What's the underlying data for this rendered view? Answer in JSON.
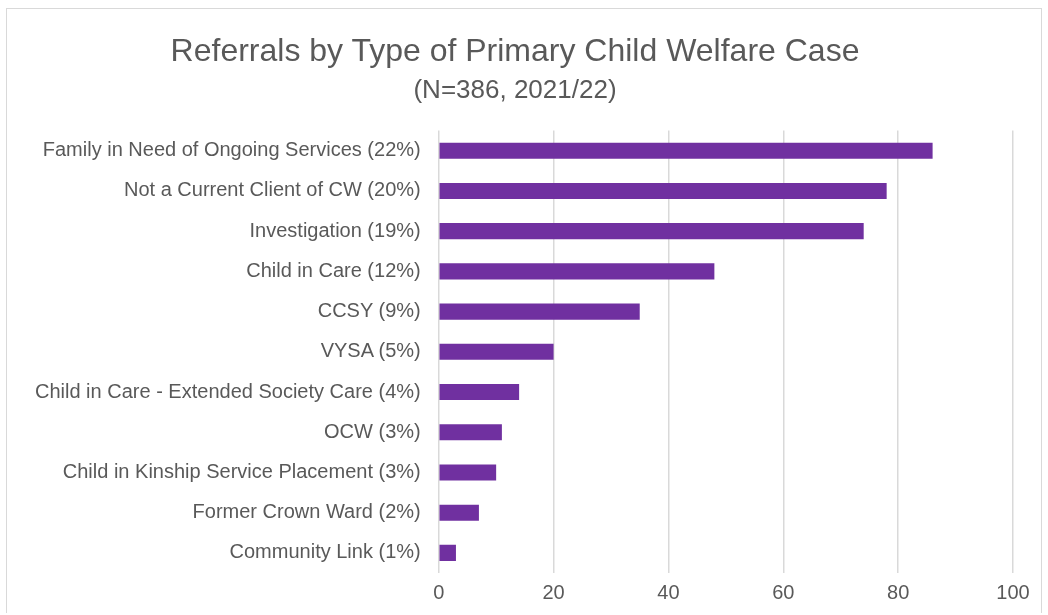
{
  "chart_data": {
    "type": "bar",
    "orientation": "horizontal",
    "title": "Referrals by Type of Primary Child Welfare Case",
    "subtitle": "(N=386, 2021/22)",
    "categories": [
      "Family in Need of Ongoing Services (22%)",
      "Not a Current Client of CW (20%)",
      "Investigation (19%)",
      "Child in Care (12%)",
      "CCSY (9%)",
      "VYSA (5%)",
      "Child in Care - Extended Society Care (4%)",
      "OCW (3%)",
      "Child in Kinship Service Placement (3%)",
      "Former Crown Ward (2%)",
      "Community Link (1%)"
    ],
    "values": [
      86,
      78,
      74,
      48,
      35,
      20,
      14,
      11,
      10,
      7,
      3
    ],
    "color": "#7030a0",
    "xlim": [
      0,
      100
    ],
    "xticks": [
      0,
      20,
      40,
      60,
      80,
      100
    ],
    "grid": "x",
    "legend": false
  }
}
